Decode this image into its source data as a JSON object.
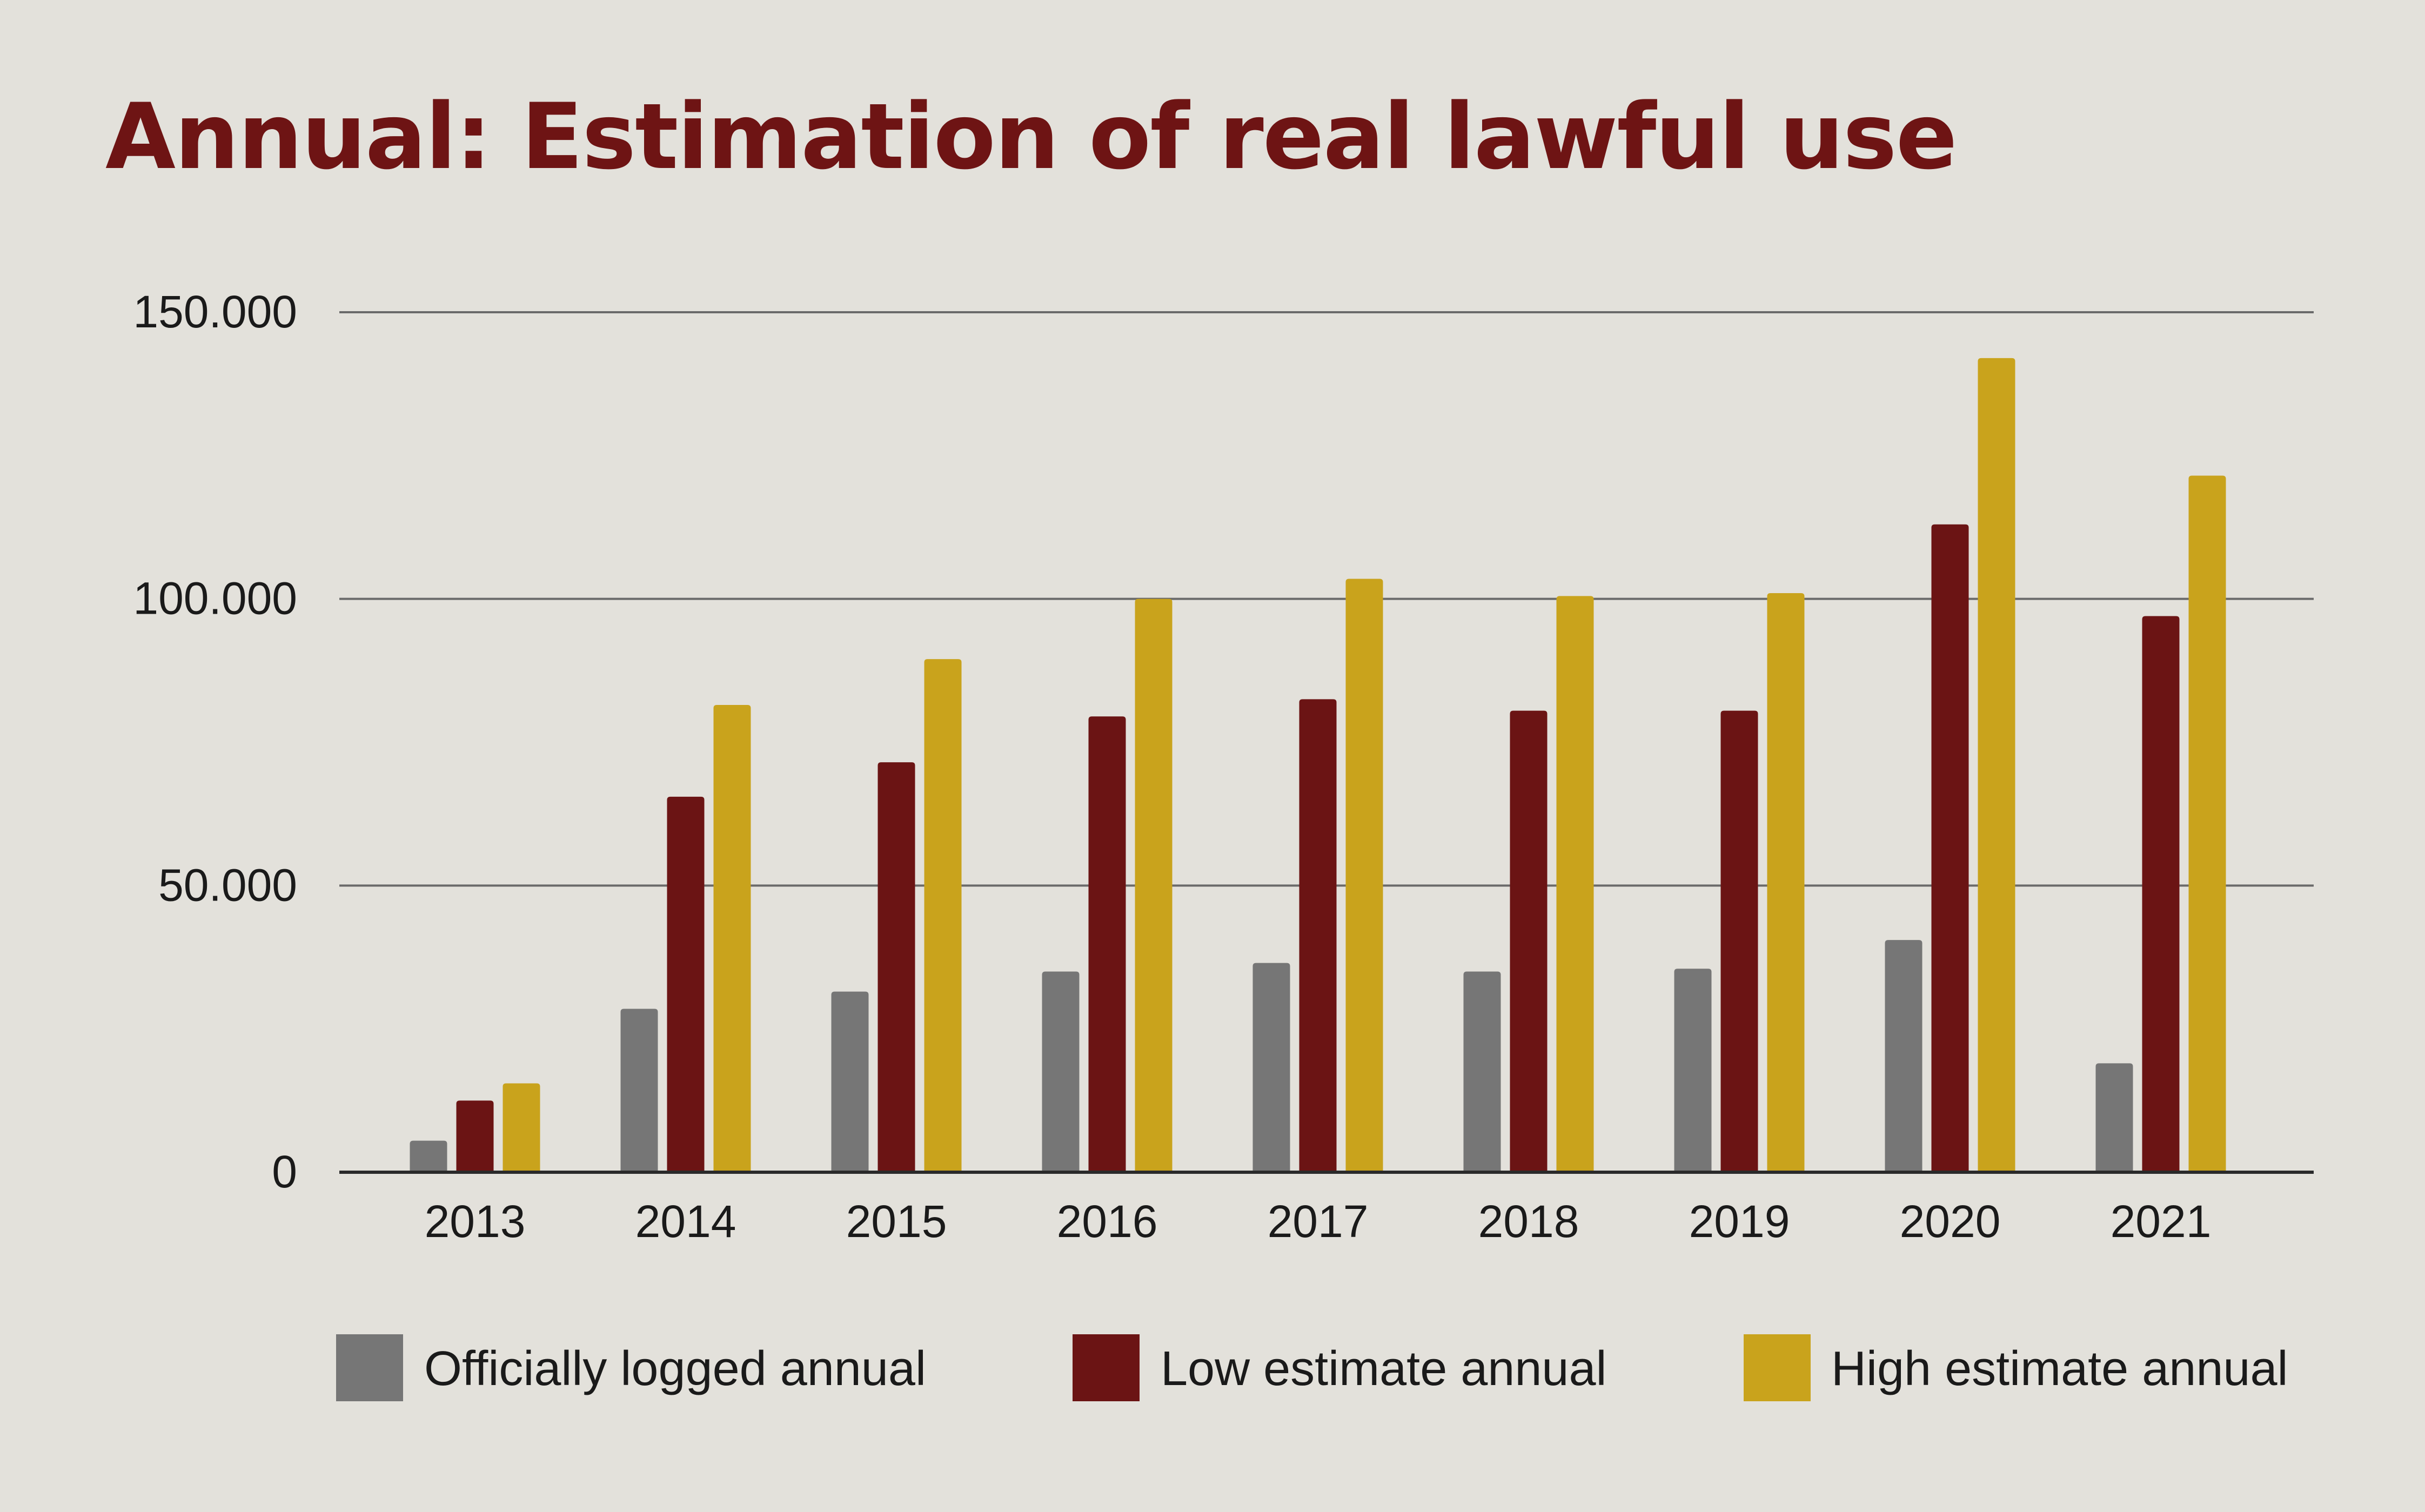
{
  "colors": {
    "background": "#e3e1db",
    "title": "#6e1414",
    "gridline": "#6a6a6a",
    "axis": "#2a2a2a",
    "text": "#1a1a1a"
  },
  "chart_data": {
    "type": "bar",
    "title": "Annual: Estimation of real lawful use",
    "xlabel": "",
    "ylabel": "",
    "ylim": [
      0,
      150000
    ],
    "y_ticks": [
      0,
      50000,
      100000,
      150000
    ],
    "y_tick_labels": [
      "0",
      "50.000",
      "100.000",
      "150.000"
    ],
    "grid": true,
    "legend_position": "bottom",
    "categories": [
      "2013",
      "2014",
      "2015",
      "2016",
      "2017",
      "2018",
      "2019",
      "2020",
      "2021"
    ],
    "series": [
      {
        "name": "Officially logged annual",
        "color": "#767676",
        "values": [
          5500,
          28500,
          31500,
          35000,
          36500,
          35000,
          35500,
          40500,
          19000
        ]
      },
      {
        "name": "Low estimate annual",
        "color": "#6b1414",
        "values": [
          12500,
          65500,
          71500,
          79500,
          82500,
          80500,
          80500,
          113000,
          97000
        ]
      },
      {
        "name": "High estimate annual",
        "color": "#c9a31c",
        "values": [
          15500,
          81500,
          89500,
          100000,
          103500,
          100500,
          101000,
          142000,
          121500
        ]
      }
    ]
  }
}
